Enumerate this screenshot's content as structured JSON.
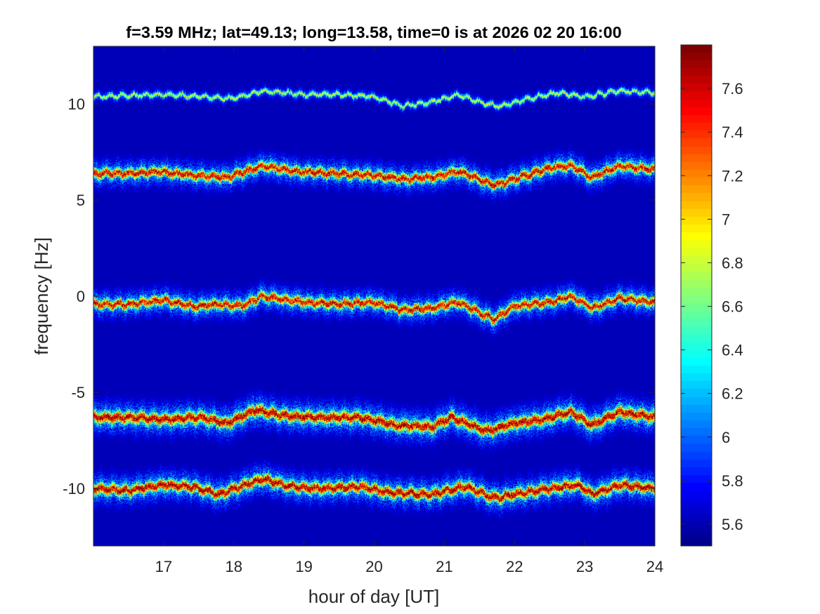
{
  "chart_data": {
    "type": "heatmap",
    "title": "f=3.59 MHz;  lat=49.13; long=13.58, time=0 is at 2026 02 20 16:00",
    "xlabel": "hour of day [UT]",
    "ylabel": "frequency [Hz]",
    "xlim": [
      16,
      24
    ],
    "ylim": [
      -13,
      13
    ],
    "x_ticks": [
      17,
      18,
      19,
      20,
      21,
      22,
      23,
      24
    ],
    "x_tick_labels": [
      "17",
      "18",
      "19",
      "20",
      "21",
      "22",
      "23",
      "24"
    ],
    "y_ticks": [
      10,
      5,
      0,
      -5,
      -10
    ],
    "y_tick_labels": [
      "10",
      "5",
      "0",
      "-5",
      "-10"
    ],
    "colorbar": {
      "colormap": "jet",
      "clim": [
        5.5,
        7.8
      ],
      "ticks": [
        7.6,
        7.4,
        7.2,
        7,
        6.8,
        6.6,
        6.4,
        6.2,
        6,
        5.8,
        5.6
      ],
      "tick_labels": [
        "7.6",
        "7.4",
        "7.2",
        "7",
        "6.8",
        "6.6",
        "6.4",
        "6.2",
        "6",
        "5.8",
        "5.6"
      ]
    },
    "background_value": 5.5,
    "traces": [
      {
        "base_frequency": 10.4,
        "peak_value": 6.9,
        "spread": 0.12,
        "hours": [
          16,
          16.5,
          17,
          17.5,
          18,
          18.4,
          19,
          19.5,
          20,
          20.4,
          20.8,
          21.2,
          21.5,
          21.8,
          22.2,
          22.6,
          23,
          23.5,
          24
        ],
        "frequencies": [
          10.4,
          10.45,
          10.5,
          10.4,
          10.3,
          10.7,
          10.5,
          10.5,
          10.4,
          9.9,
          10.1,
          10.5,
          10.1,
          9.9,
          10.3,
          10.6,
          10.4,
          10.7,
          10.6
        ]
      },
      {
        "base_frequency": 6.4,
        "peak_value": 7.7,
        "spread": 0.25,
        "hours": [
          16,
          16.5,
          16.9,
          17.4,
          17.9,
          18.4,
          18.9,
          19.5,
          20,
          20.4,
          20.8,
          21.2,
          21.7,
          22,
          22.5,
          22.8,
          23.1,
          23.5,
          24
        ],
        "frequencies": [
          6.4,
          6.4,
          6.5,
          6.3,
          6.2,
          6.8,
          6.5,
          6.4,
          6.3,
          6.1,
          6.2,
          6.5,
          5.8,
          6.1,
          6.7,
          6.8,
          6.2,
          6.8,
          6.6
        ]
      },
      {
        "base_frequency": -0.4,
        "peak_value": 7.7,
        "spread": 0.25,
        "hours": [
          16,
          16.5,
          17,
          17.4,
          17.8,
          18.1,
          18.4,
          19,
          19.5,
          20,
          20.4,
          20.8,
          21.2,
          21.7,
          22,
          22.5,
          22.8,
          23.1,
          23.5,
          24
        ],
        "frequencies": [
          -0.4,
          -0.4,
          -0.2,
          -0.5,
          -0.4,
          -0.5,
          0.0,
          -0.3,
          -0.4,
          -0.3,
          -0.7,
          -0.6,
          -0.3,
          -1.2,
          -0.5,
          -0.3,
          0.0,
          -0.6,
          -0.1,
          -0.3
        ]
      },
      {
        "base_frequency": -6.3,
        "peak_value": 7.8,
        "spread": 0.3,
        "hours": [
          16,
          16.5,
          17,
          17.5,
          17.9,
          18.3,
          18.7,
          19.2,
          19.8,
          20.3,
          20.8,
          21.1,
          21.6,
          22,
          22.4,
          22.8,
          23.1,
          23.5,
          24
        ],
        "frequencies": [
          -6.3,
          -6.3,
          -6.4,
          -6.3,
          -6.6,
          -5.9,
          -6.2,
          -6.3,
          -6.3,
          -6.7,
          -6.8,
          -6.3,
          -7.0,
          -6.6,
          -6.4,
          -6.0,
          -6.7,
          -6.0,
          -6.3
        ]
      },
      {
        "base_frequency": -10.0,
        "peak_value": 7.8,
        "spread": 0.28,
        "hours": [
          16,
          16.5,
          17,
          17.4,
          17.8,
          18,
          18.4,
          18.8,
          19.2,
          19.8,
          20.2,
          20.8,
          21.3,
          21.7,
          22,
          22.5,
          22.9,
          23.1,
          23.5,
          24
        ],
        "frequencies": [
          -10.0,
          -10.1,
          -9.8,
          -9.9,
          -10.3,
          -10.0,
          -9.5,
          -9.9,
          -10.0,
          -9.9,
          -10.2,
          -10.3,
          -9.9,
          -10.5,
          -10.3,
          -10.0,
          -9.8,
          -10.3,
          -9.8,
          -10.0
        ]
      }
    ]
  }
}
